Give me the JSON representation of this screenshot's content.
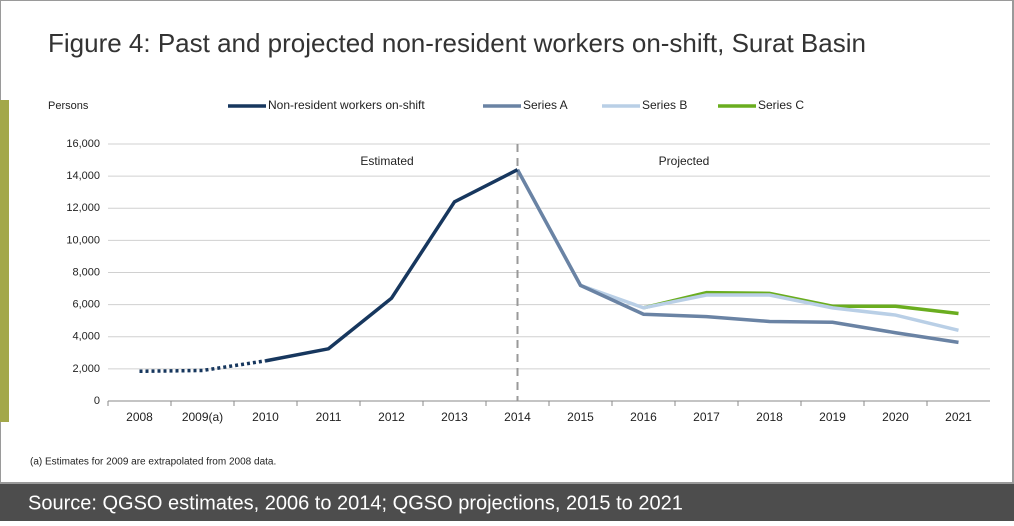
{
  "chart_data": {
    "type": "line",
    "title": "Figure 4: Past and projected non-resident workers on-shift, Surat Basin",
    "y_label": "Persons",
    "categories": [
      "2008",
      "2009(a)",
      "2010",
      "2011",
      "2012",
      "2013",
      "2014",
      "2015",
      "2016",
      "2017",
      "2018",
      "2019",
      "2020",
      "2021"
    ],
    "series": [
      {
        "name": "Non-resident workers on-shift",
        "color": "#17375e",
        "values": [
          1850,
          1900,
          2500,
          3250,
          6400,
          12400,
          14400,
          null,
          null,
          null,
          null,
          null,
          null,
          null
        ],
        "dotted_through": "2010"
      },
      {
        "name": "Series A",
        "color": "#6a83a4",
        "values": [
          null,
          null,
          null,
          null,
          null,
          null,
          14400,
          7200,
          5400,
          5250,
          4950,
          4900,
          4250,
          3650
        ]
      },
      {
        "name": "Series B",
        "color": "#b9cfe6",
        "values": [
          null,
          null,
          null,
          null,
          null,
          null,
          14400,
          7200,
          5800,
          6600,
          6600,
          5800,
          5350,
          4400
        ]
      },
      {
        "name": "Series C",
        "color": "#6aad1f",
        "values": [
          null,
          null,
          null,
          null,
          null,
          null,
          null,
          null,
          5800,
          6750,
          6700,
          5900,
          5900,
          5450
        ]
      }
    ],
    "ylim": [
      0,
      16000
    ],
    "yticks": [
      0,
      {
        "value": 2000,
        "label": "2,000"
      },
      {
        "value": 4000,
        "label": "4,000"
      },
      {
        "value": 6000,
        "label": "6,000"
      },
      {
        "value": 8000,
        "label": "8,000"
      },
      {
        "value": 10000,
        "label": "10,000"
      },
      {
        "value": 12000,
        "label": "12,000"
      },
      {
        "value": 14000,
        "label": "14,000"
      },
      {
        "value": 16000,
        "label": "16,000"
      }
    ],
    "grid": true,
    "divider": "2014",
    "annotations": [
      "Estimated",
      "Projected"
    ],
    "footnote": "(a)  Estimates for 2009 are extrapolated from 2008 data.",
    "source": "Source: QGSO estimates, 2006 to 2014; QGSO projections, 2015 to 2021"
  }
}
